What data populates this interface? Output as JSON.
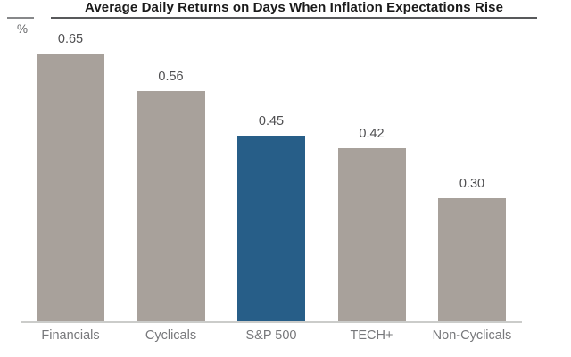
{
  "header": {
    "title": "Average Daily Returns on Days When Inflation Expectations Rise"
  },
  "chart_data": {
    "type": "bar",
    "title": "Average Daily Returns on Days When Inflation Expectations Rise",
    "categories": [
      "Financials",
      "Cyclicals",
      "S&P 500",
      "TECH+",
      "Non-Cyclicals"
    ],
    "values": [
      0.65,
      0.56,
      0.45,
      0.42,
      0.3
    ],
    "value_labels": [
      "0.65",
      "0.56",
      "0.45",
      "0.42",
      "0.30"
    ],
    "xlabel": "",
    "ylabel": "%",
    "ylim": [
      0,
      0.71
    ],
    "grid": false,
    "legend": false,
    "highlight_index": 2,
    "colors": {
      "bar": "#a8a19b",
      "highlight": "#275e88",
      "value_label": "#4e4e50",
      "category_label": "#77787b",
      "baseline": "#cbccca",
      "title_underline": "#58595b",
      "left_dash": "#87888a"
    }
  }
}
